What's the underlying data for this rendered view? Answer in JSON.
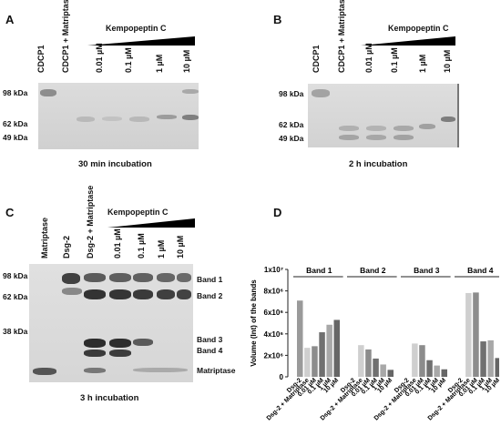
{
  "panels": {
    "A": {
      "letter": "A",
      "lanes": [
        "CDCP1",
        "CDCP1 + Matriptase",
        "0.01 µM",
        "0.1 µM",
        "1 µM",
        "10 µM"
      ],
      "treatment": "Kempopeptin C",
      "markers": [
        "98 kDa",
        "62 kDa",
        "49 kDa"
      ],
      "caption": "30 min incubation"
    },
    "B": {
      "letter": "B",
      "lanes": [
        "CDCP1",
        "CDCP1 + Matriptase",
        "0.01 µM",
        "0.1 µM",
        "1 µM",
        "10 µM"
      ],
      "treatment": "Kempopeptin C",
      "markers": [
        "98 kDa",
        "62 kDa",
        "49 kDa"
      ],
      "caption": "2 h incubation"
    },
    "C": {
      "letter": "C",
      "lanes": [
        "Matriptase",
        "Dsg-2",
        "Dsg-2 + Matriptase",
        "0.01 µM",
        "0.1 µM",
        "1 µM",
        "10 µM"
      ],
      "treatment": "Kempopeptin C",
      "markers": [
        "98 kDa",
        "62 kDa",
        "38 kDa"
      ],
      "band_labels": [
        "Band 1",
        "Band 2",
        "Band 3",
        "Band 4",
        "Matriptase"
      ],
      "caption": "3 h incubation"
    },
    "D": {
      "letter": "D"
    }
  },
  "chart_data": {
    "type": "bar",
    "ylabel": "Volume (Int) of the bands",
    "ylim": [
      0,
      10000000
    ],
    "yticks": [
      "0",
      "2x10⁶",
      "4x10⁶",
      "6x10⁶",
      "8x10⁶",
      "1x10⁷"
    ],
    "categories": [
      "Dsg-2",
      "Dsg-2 + Matriptase",
      "0.01 µM",
      "0.1 µM",
      "1 µM",
      "10 µM"
    ],
    "groups": [
      {
        "name": "Band 1",
        "values": [
          7100000,
          2700000,
          2850000,
          4150000,
          4850000,
          5300000
        ]
      },
      {
        "name": "Band 2",
        "values": [
          null,
          2950000,
          2550000,
          1700000,
          1150000,
          650000
        ]
      },
      {
        "name": "Band 3",
        "values": [
          null,
          3100000,
          2950000,
          1550000,
          1050000,
          700000
        ]
      },
      {
        "name": "Band 4",
        "values": [
          null,
          7800000,
          7850000,
          3300000,
          3400000,
          1750000
        ]
      }
    ],
    "bar_colors": [
      "#9a9a9a",
      "#cfcfcf",
      "#8c8c8c",
      "#707070",
      "#a8a8a8",
      "#666666"
    ],
    "grid": false
  }
}
